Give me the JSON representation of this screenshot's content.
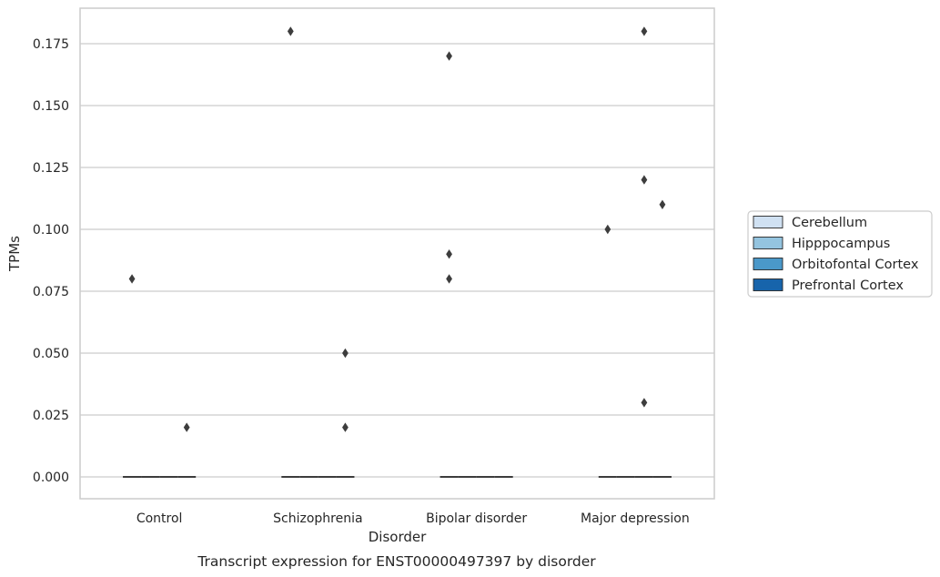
{
  "chart_data": {
    "type": "box",
    "xlabel": "Disorder",
    "ylabel": "TPMs",
    "caption": "Transcript expression for ENST00000497397 by disorder",
    "categories": [
      "Control",
      "Schizophrenia",
      "Bipolar disorder",
      "Major depression"
    ],
    "ylim": [
      -0.009,
      0.182
    ],
    "yticks": [
      "0.000",
      "0.025",
      "0.050",
      "0.075",
      "0.100",
      "0.125",
      "0.150",
      "0.175"
    ],
    "grid": "horizontal",
    "legend_position": "right",
    "series": [
      {
        "name": "Cerebellum",
        "color": "#d0e1f2",
        "median": [
          0,
          0,
          0,
          0
        ],
        "outliers": [
          [
            0.08
          ],
          [
            0.18
          ],
          [
            0.17,
            0.09,
            0.08
          ],
          [
            0.1
          ]
        ]
      },
      {
        "name": "Hipppocampus",
        "color": "#94c4df",
        "median": [
          0,
          0,
          0,
          0
        ],
        "outliers": [
          [],
          [],
          [],
          []
        ]
      },
      {
        "name": "Orbitofontal Cortex",
        "color": "#4a98c9",
        "median": [
          0,
          0,
          0,
          0
        ],
        "outliers": [
          [],
          [],
          [],
          [
            0.18,
            0.12,
            0.03
          ]
        ]
      },
      {
        "name": "Prefrontal Cortex",
        "color": "#1764ab",
        "median": [
          0,
          0,
          0,
          0
        ],
        "outliers": [
          [
            0.02
          ],
          [
            0.05,
            0.02
          ],
          [],
          [
            0.11
          ]
        ]
      }
    ]
  }
}
